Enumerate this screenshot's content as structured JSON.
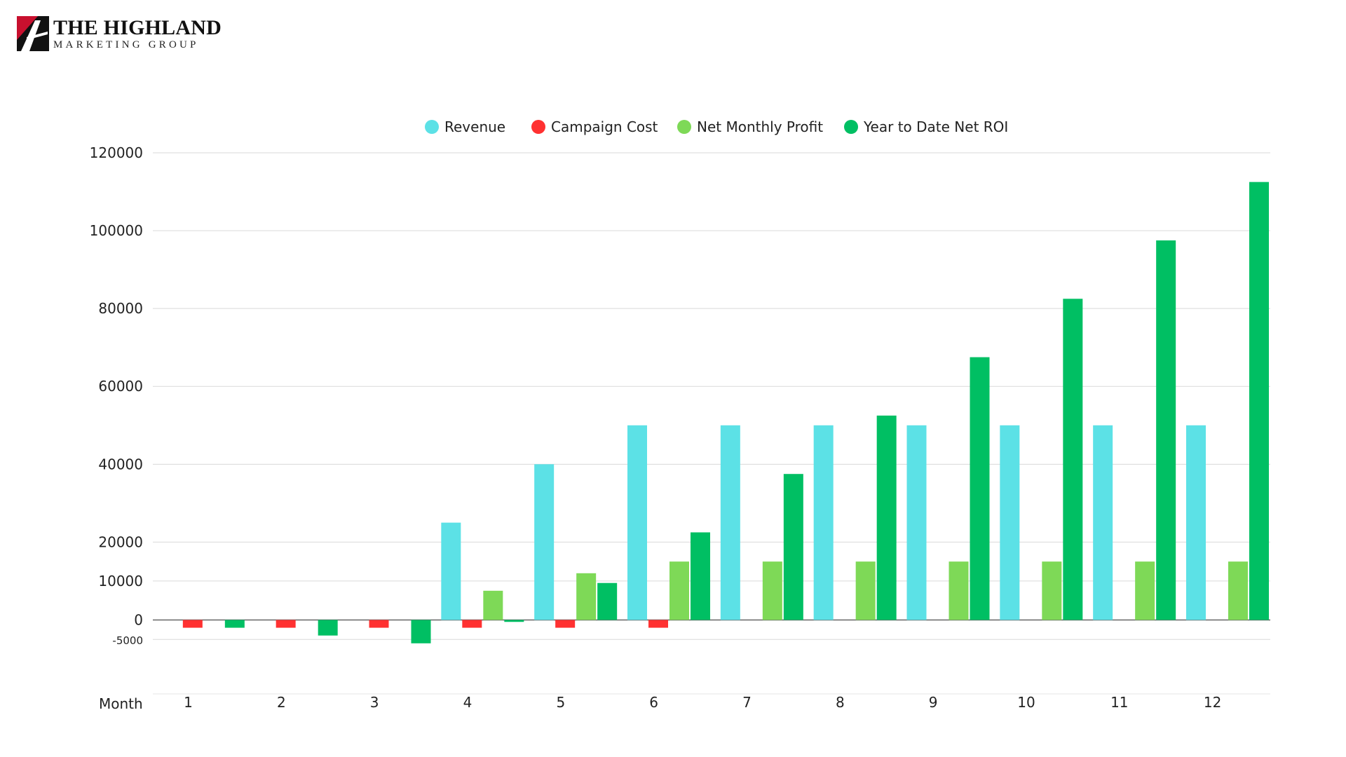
{
  "logo": {
    "title": "THE HIGHLAND",
    "subtitle": "MARKETING GROUP"
  },
  "chart_data": {
    "type": "bar",
    "xlabel": "Month",
    "categories": [
      "1",
      "2",
      "3",
      "4",
      "5",
      "6",
      "7",
      "8",
      "9",
      "10",
      "11",
      "12"
    ],
    "y_ticks": [
      -5000,
      0,
      10000,
      20000,
      40000,
      60000,
      80000,
      100000,
      120000
    ],
    "ylim": [
      -19000,
      120000
    ],
    "grid": true,
    "legend_position": "top-center",
    "series": [
      {
        "name": "Revenue",
        "color": "#5ce1e6",
        "values": [
          0,
          0,
          0,
          25000,
          40000,
          50000,
          50000,
          50000,
          50000,
          50000,
          50000,
          50000
        ]
      },
      {
        "name": "Campaign Cost",
        "color": "#ff3131",
        "values": [
          -2000,
          -2000,
          -2000,
          -2000,
          -2000,
          -2000,
          0,
          0,
          0,
          0,
          0,
          0
        ]
      },
      {
        "name": "Net Monthly Profit",
        "color": "#7ed957",
        "values": [
          0,
          0,
          0,
          7500,
          12000,
          15000,
          15000,
          15000,
          15000,
          15000,
          15000,
          15000
        ]
      },
      {
        "name": "Year to Date Net ROI",
        "color": "#00bf63",
        "values": [
          -2000,
          -4000,
          -6000,
          -500,
          9500,
          22500,
          37500,
          52500,
          67500,
          82500,
          97500,
          112500
        ]
      }
    ]
  }
}
